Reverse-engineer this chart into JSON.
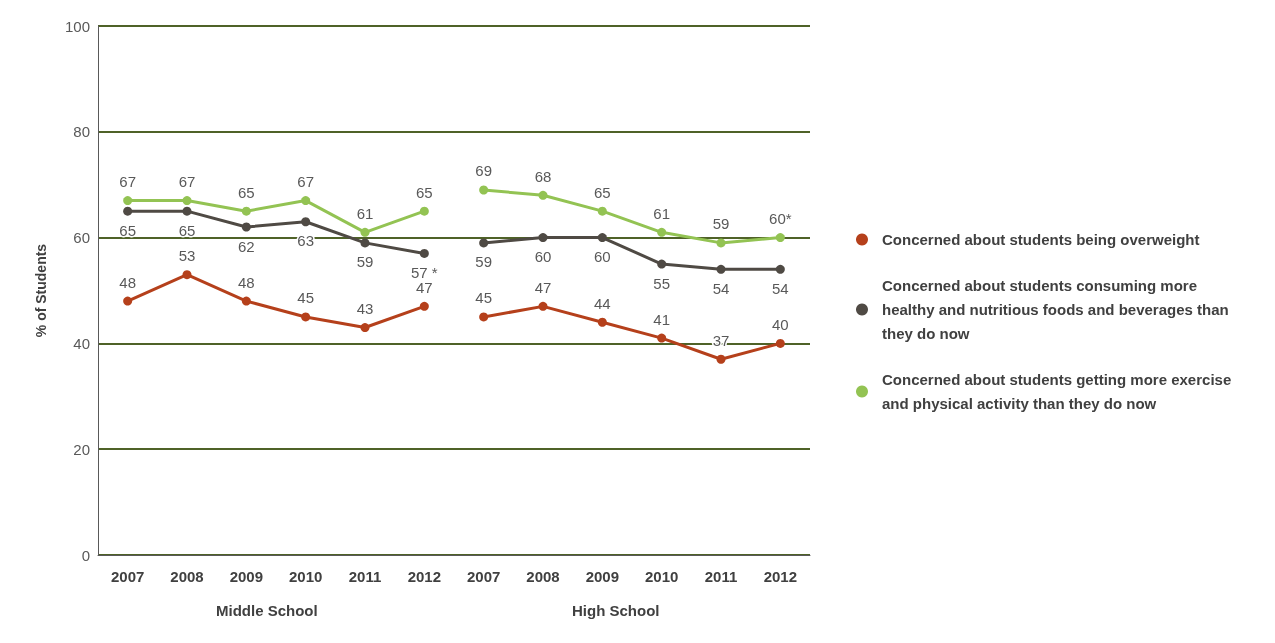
{
  "chart_data": {
    "type": "line",
    "ylabel": "% of Students",
    "categories": [
      "2007",
      "2008",
      "2009",
      "2010",
      "2011",
      "2012",
      "2007",
      "2008",
      "2009",
      "2010",
      "2011",
      "2012"
    ],
    "series": [
      {
        "name": "Concerned about students being overweight",
        "color": "#b5401b",
        "values": [
          48,
          53,
          48,
          45,
          43,
          47,
          null,
          null,
          null,
          null,
          null,
          null
        ]
      },
      {
        "name": "Concerned about students consuming more healthy and nutritious foods and beverages than they do now",
        "color": "#4f4a44",
        "values": [
          65,
          65,
          62,
          63,
          59,
          57,
          null,
          null,
          null,
          null,
          null,
          null
        ],
        "value_labels": [
          "65",
          "65",
          "62",
          "63",
          "59",
          "57 *",
          null,
          null,
          null,
          null,
          null,
          null
        ]
      },
      {
        "name": "Concerned about students getting more exercise and physical activity than they do now",
        "color": "#93c353",
        "values": [
          67,
          67,
          65,
          67,
          61,
          65,
          null,
          null,
          null,
          null,
          null,
          null
        ]
      },
      {
        "color": "#b5401b",
        "values": [
          null,
          null,
          null,
          null,
          null,
          null,
          45,
          47,
          44,
          41,
          37,
          40
        ]
      },
      {
        "color": "#4f4a44",
        "values": [
          null,
          null,
          null,
          null,
          null,
          null,
          59,
          60,
          60,
          55,
          54,
          54
        ]
      },
      {
        "color": "#93c353",
        "values": [
          null,
          null,
          null,
          null,
          null,
          null,
          69,
          68,
          65,
          61,
          59,
          60
        ],
        "value_labels": [
          null,
          null,
          null,
          null,
          null,
          null,
          "69",
          "68",
          "65",
          "61",
          "59",
          "60*"
        ]
      }
    ],
    "ylim": [
      0,
      100
    ],
    "yticks": [
      0,
      20,
      40,
      60,
      80,
      100
    ],
    "grid": "y",
    "legend": "right",
    "marker": "circle",
    "line_style": "solid",
    "data_labels": true,
    "annotations": [
      "Middle School",
      "High School"
    ]
  }
}
